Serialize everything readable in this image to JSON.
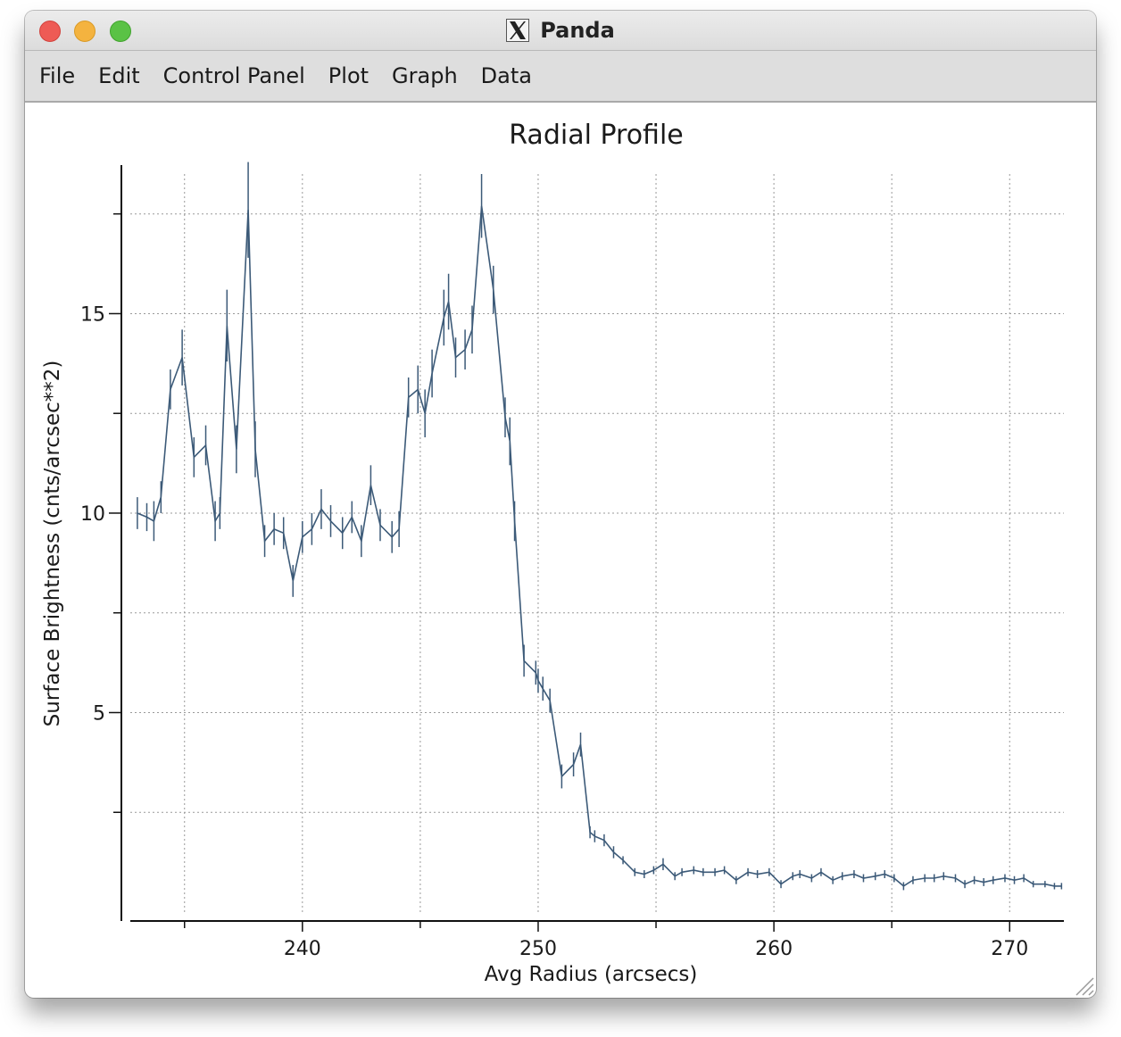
{
  "window": {
    "title": "Panda",
    "app_icon": "x11-icon"
  },
  "menu": {
    "items": [
      "File",
      "Edit",
      "Control Panel",
      "Plot",
      "Graph",
      "Data"
    ]
  },
  "chart_data": {
    "type": "line",
    "title": "Radial Profile",
    "xlabel": "Avg Radius (arcsecs)",
    "ylabel": "Surface Brightness (cnts/arcsec**2)",
    "xlim": [
      232.7,
      272.3
    ],
    "ylim": [
      0,
      18.5
    ],
    "xticks": [
      240,
      250,
      260,
      270
    ],
    "yticks": [
      5,
      10,
      15
    ],
    "grid": true,
    "line_color": "#3c5a78",
    "series": [
      {
        "x": [
          233.0,
          233.4,
          233.7,
          234.0,
          234.4,
          234.9,
          235.4,
          235.9,
          236.3,
          236.5,
          236.8,
          237.2,
          237.7,
          238.0,
          238.4,
          238.8,
          239.2,
          239.6,
          240.0,
          240.4,
          240.8,
          241.2,
          241.7,
          242.1,
          242.5,
          242.9,
          243.3,
          243.8,
          244.1,
          244.5,
          244.9,
          245.2,
          245.5,
          246.0,
          246.2,
          246.5,
          246.9,
          247.2,
          247.6,
          248.1,
          248.6,
          248.8,
          249.0,
          249.4,
          249.9,
          250.0,
          250.2,
          250.5,
          251.0,
          251.5,
          251.8,
          252.2,
          252.4,
          252.8,
          253.2,
          253.6,
          254.1,
          254.5,
          254.9,
          255.3,
          255.8,
          256.1,
          256.6,
          257.0,
          257.5,
          257.9,
          258.4,
          258.9,
          259.3,
          259.8,
          260.3,
          260.8,
          261.1,
          261.6,
          262.0,
          262.5,
          262.9,
          263.4,
          263.8,
          264.3,
          264.7,
          265.1,
          265.5,
          265.9,
          266.4,
          266.8,
          267.2,
          267.7,
          268.1,
          268.5,
          268.9,
          269.3,
          269.8,
          270.2,
          270.6,
          271.0,
          271.5,
          271.9,
          272.2
        ],
        "y": [
          10.0,
          9.9,
          9.8,
          10.4,
          13.1,
          13.9,
          11.4,
          11.7,
          9.8,
          10.0,
          14.7,
          11.6,
          17.6,
          11.6,
          9.3,
          9.6,
          9.5,
          8.3,
          9.4,
          9.6,
          10.1,
          9.8,
          9.5,
          9.9,
          9.3,
          10.7,
          9.7,
          9.4,
          9.6,
          12.9,
          13.1,
          12.5,
          13.5,
          14.9,
          15.3,
          13.9,
          14.1,
          14.6,
          17.7,
          15.6,
          12.4,
          11.8,
          9.8,
          6.3,
          6.0,
          5.8,
          5.6,
          5.3,
          3.4,
          3.7,
          4.2,
          2.0,
          1.9,
          1.8,
          1.5,
          1.3,
          1.0,
          0.95,
          1.05,
          1.2,
          0.9,
          1.0,
          1.05,
          1.0,
          1.0,
          1.05,
          0.8,
          1.0,
          0.95,
          1.0,
          0.7,
          0.9,
          0.95,
          0.85,
          1.0,
          0.8,
          0.9,
          0.95,
          0.85,
          0.9,
          0.95,
          0.85,
          0.65,
          0.8,
          0.85,
          0.85,
          0.9,
          0.85,
          0.7,
          0.8,
          0.75,
          0.8,
          0.85,
          0.8,
          0.85,
          0.7,
          0.7,
          0.65,
          0.65
        ],
        "err": [
          0.4,
          0.35,
          0.5,
          0.4,
          0.5,
          0.7,
          0.5,
          0.5,
          0.5,
          0.4,
          0.9,
          0.6,
          1.2,
          0.7,
          0.4,
          0.4,
          0.4,
          0.4,
          0.4,
          0.4,
          0.5,
          0.4,
          0.4,
          0.4,
          0.4,
          0.5,
          0.4,
          0.4,
          0.45,
          0.5,
          0.6,
          0.6,
          0.6,
          0.7,
          0.7,
          0.5,
          0.5,
          0.6,
          0.8,
          0.6,
          0.5,
          0.6,
          0.5,
          0.4,
          0.3,
          0.3,
          0.3,
          0.3,
          0.3,
          0.3,
          0.3,
          0.15,
          0.15,
          0.15,
          0.15,
          0.1,
          0.1,
          0.1,
          0.1,
          0.15,
          0.1,
          0.1,
          0.1,
          0.1,
          0.1,
          0.1,
          0.1,
          0.1,
          0.1,
          0.1,
          0.1,
          0.1,
          0.1,
          0.1,
          0.1,
          0.1,
          0.1,
          0.1,
          0.1,
          0.1,
          0.1,
          0.1,
          0.1,
          0.1,
          0.1,
          0.1,
          0.1,
          0.1,
          0.1,
          0.1,
          0.1,
          0.1,
          0.1,
          0.1,
          0.1,
          0.08,
          0.08,
          0.08,
          0.08
        ]
      }
    ]
  }
}
